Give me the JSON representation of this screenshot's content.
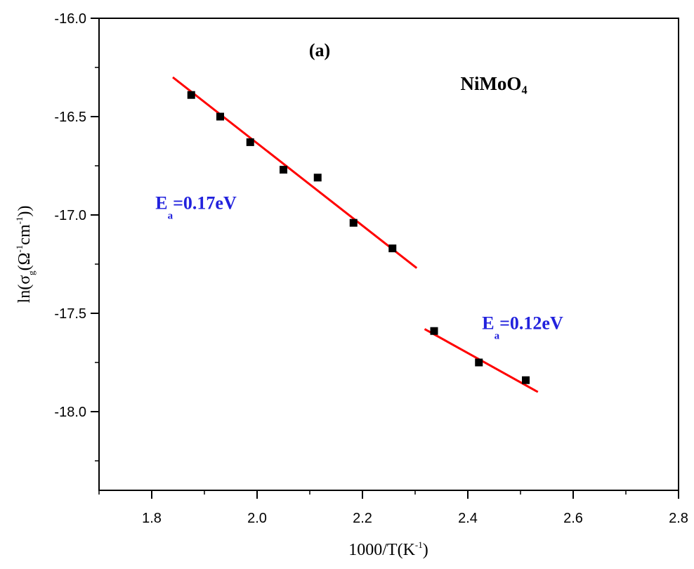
{
  "chart_data": {
    "type": "scatter",
    "panel_label": "(a)",
    "compound_label": "NiMoO₄",
    "xlabel": "1000/T(K⁻¹)",
    "ylabel": "ln(σg(Ω⁻¹cm⁻¹))",
    "xlim": [
      1.7,
      2.8
    ],
    "ylim": [
      -18.4,
      -16.0
    ],
    "xticks": [
      1.8,
      2.0,
      2.2,
      2.4,
      2.6,
      2.8
    ],
    "xtick_labels": [
      "1.8",
      "2.0",
      "2.2",
      "2.4",
      "2.6",
      "2.8"
    ],
    "yticks": [
      -16.0,
      -16.5,
      -17.0,
      -17.5,
      -18.0
    ],
    "ytick_labels": [
      "-16.0",
      "-16.5",
      "-17.0",
      "-17.5",
      "-18.0"
    ],
    "grid": false,
    "series": [
      {
        "marker": "square",
        "color": "#000000",
        "x": [
          1.875,
          1.93,
          1.987,
          2.05,
          2.115,
          2.183,
          2.257,
          2.336,
          2.421,
          2.51
        ],
        "y": [
          -16.39,
          -16.5,
          -16.63,
          -16.77,
          -16.81,
          -17.04,
          -17.17,
          -17.59,
          -17.75,
          -17.84
        ]
      }
    ],
    "fits": [
      {
        "color": "#ff0000",
        "x": [
          1.84,
          2.303
        ],
        "y": [
          -16.3,
          -17.27
        ]
      },
      {
        "color": "#ff0000",
        "x": [
          2.318,
          2.533
        ],
        "y": [
          -17.58,
          -17.9
        ]
      }
    ],
    "annotations": [
      {
        "main": "E",
        "sub": "a",
        "rest": "=0.17eV",
        "color": "#2222dd",
        "x": 1.807,
        "y": -16.97
      },
      {
        "main": "E",
        "sub": "a",
        "rest": "=0.12eV",
        "color": "#2222dd",
        "x": 2.427,
        "y": -17.58
      }
    ]
  }
}
